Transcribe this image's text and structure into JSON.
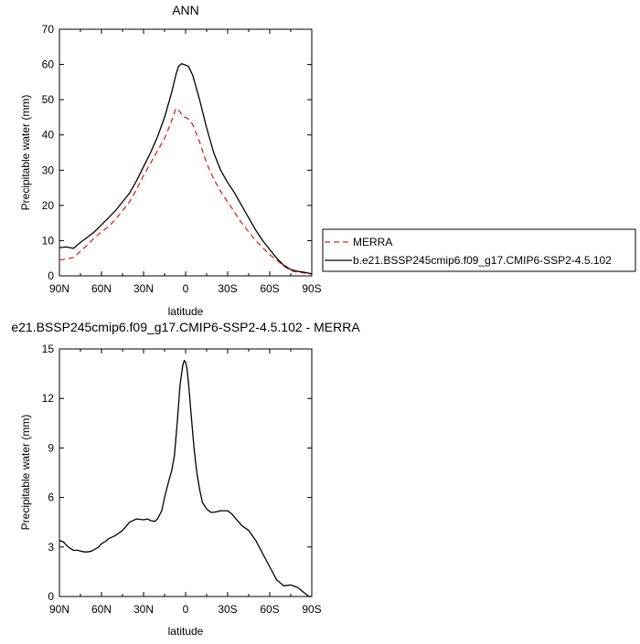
{
  "chart_data": [
    {
      "type": "line",
      "title": "ANN",
      "xlabel": "latitude",
      "ylabel": "Precipitable water (mm)",
      "xlim": [
        90,
        -90
      ],
      "ylim": [
        0,
        70
      ],
      "x_ticks": [
        90,
        60,
        30,
        0,
        -30,
        -60,
        -90
      ],
      "x_tick_labels": [
        "90N",
        "60N",
        "30N",
        "0",
        "30S",
        "60S",
        "90S"
      ],
      "y_ticks": [
        0,
        10,
        20,
        30,
        40,
        50,
        60,
        70
      ],
      "y_tick_labels": [
        "0",
        "10",
        "20",
        "30",
        "40",
        "50",
        "60",
        "70"
      ],
      "grid": false,
      "legend_position": "right",
      "series": [
        {
          "name": "MERRA",
          "color": "#e8201e",
          "dash": "dashed",
          "x": [
            90,
            85,
            80,
            75,
            70,
            65,
            60,
            55,
            50,
            45,
            40,
            35,
            30,
            25,
            20,
            15,
            10,
            7,
            5,
            3,
            1,
            0,
            -2,
            -5,
            -10,
            -15,
            -20,
            -25,
            -30,
            -35,
            -40,
            -45,
            -50,
            -55,
            -60,
            -65,
            -70,
            -75,
            -80,
            -85,
            -90
          ],
          "y": [
            4.5,
            4.8,
            5.2,
            7.0,
            8.8,
            10.8,
            12.5,
            14.0,
            16.0,
            18.5,
            21.0,
            24.5,
            28.5,
            32.0,
            35.5,
            39.0,
            44.0,
            47.5,
            47.0,
            46.0,
            45.0,
            45.0,
            44.5,
            43.0,
            38.0,
            32.0,
            27.5,
            24.0,
            21.0,
            18.0,
            15.0,
            12.5,
            10.0,
            8.0,
            6.0,
            4.5,
            2.8,
            1.5,
            1.0,
            0.8,
            0.5
          ]
        },
        {
          "name": "b.e21.BSSP245cmip6.f09_g17.CMIP6-SSP2-4.5.102",
          "color": "#000000",
          "dash": "solid",
          "x": [
            90,
            85,
            80,
            75,
            70,
            65,
            60,
            55,
            50,
            45,
            40,
            35,
            30,
            25,
            20,
            15,
            10,
            7,
            5,
            3,
            1,
            0,
            -2,
            -5,
            -10,
            -15,
            -20,
            -25,
            -30,
            -35,
            -40,
            -45,
            -50,
            -55,
            -60,
            -65,
            -70,
            -75,
            -80,
            -85,
            -90
          ],
          "y": [
            8.0,
            8.2,
            7.8,
            9.5,
            11.0,
            12.5,
            14.5,
            16.5,
            18.5,
            21.0,
            23.5,
            27.0,
            31.0,
            35.0,
            39.5,
            45.0,
            52.0,
            57.0,
            59.5,
            60.2,
            60.0,
            59.8,
            59.5,
            57.0,
            50.0,
            42.0,
            35.0,
            30.0,
            26.5,
            23.5,
            20.0,
            16.5,
            13.0,
            10.0,
            7.5,
            5.0,
            3.0,
            1.8,
            1.3,
            1.0,
            0.6
          ]
        }
      ]
    },
    {
      "type": "line",
      "title": "e21.BSSP245cmip6.f09_g17.CMIP6-SSP2-4.5.102 - MERRA",
      "xlabel": "latitude",
      "ylabel": "Precipitable water (mm)",
      "xlim": [
        90,
        -90
      ],
      "ylim": [
        0,
        15
      ],
      "x_ticks": [
        90,
        60,
        30,
        0,
        -30,
        -60,
        -90
      ],
      "x_tick_labels": [
        "90N",
        "60N",
        "30N",
        "0",
        "30S",
        "60S",
        "90S"
      ],
      "y_ticks": [
        0,
        3,
        6,
        9,
        12,
        15
      ],
      "y_tick_labels": [
        "0",
        "3",
        "6",
        "9",
        "12",
        "15"
      ],
      "grid": false,
      "series": [
        {
          "color": "#000000",
          "dash": "solid",
          "x": [
            90,
            87,
            85,
            82,
            80,
            77,
            75,
            72,
            70,
            67,
            65,
            62,
            60,
            57,
            55,
            50,
            45,
            40,
            35,
            30,
            27,
            25,
            22,
            20,
            17,
            15,
            12,
            10,
            8,
            6,
            4,
            2,
            1,
            0,
            -1,
            -2,
            -4,
            -6,
            -8,
            -10,
            -12,
            -15,
            -18,
            -20,
            -25,
            -30,
            -33,
            -35,
            -40,
            -45,
            -50,
            -55,
            -60,
            -65,
            -70,
            -75,
            -80,
            -85,
            -88,
            -90
          ],
          "y": [
            3.4,
            3.3,
            3.1,
            2.9,
            2.8,
            2.8,
            2.75,
            2.7,
            2.7,
            2.75,
            2.85,
            3.0,
            3.2,
            3.35,
            3.5,
            3.7,
            4.0,
            4.5,
            4.7,
            4.65,
            4.7,
            4.6,
            4.55,
            4.7,
            5.2,
            6.0,
            7.0,
            7.6,
            8.5,
            10.5,
            12.8,
            14.0,
            14.3,
            14.2,
            13.8,
            13.0,
            11.0,
            9.0,
            7.5,
            6.5,
            5.7,
            5.3,
            5.1,
            5.1,
            5.2,
            5.2,
            5.0,
            4.8,
            4.3,
            4.0,
            3.4,
            2.6,
            1.8,
            1.0,
            0.65,
            0.7,
            0.55,
            0.2,
            0.0,
            0.0
          ]
        }
      ]
    }
  ]
}
